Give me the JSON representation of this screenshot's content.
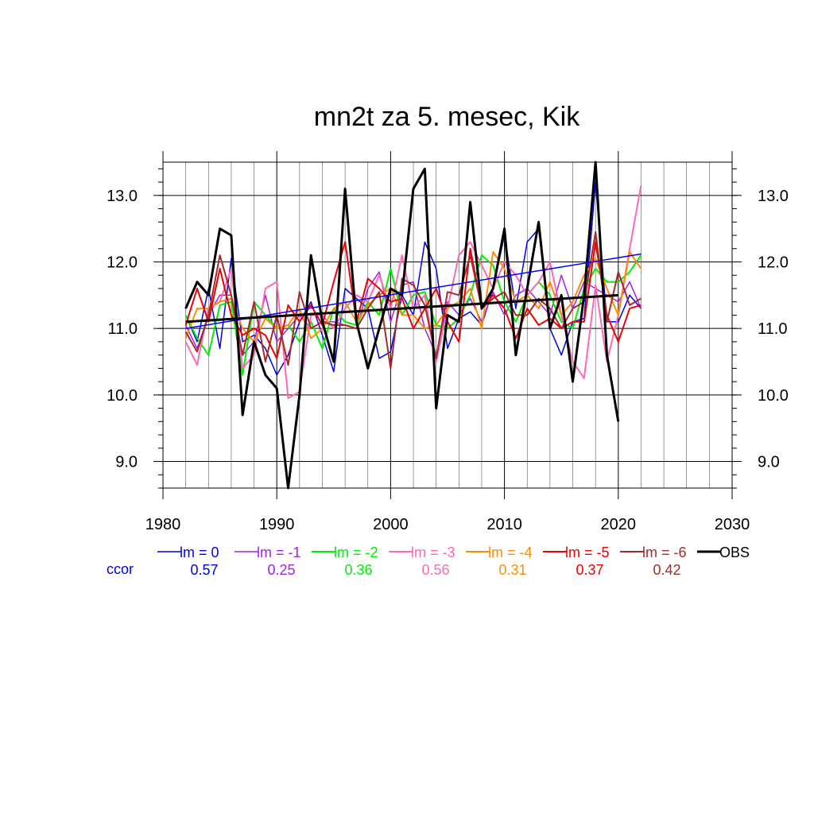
{
  "chart_data": {
    "type": "line",
    "title": "mn2t za 5. mesec, Kik",
    "xlim": [
      1980,
      2030
    ],
    "ylim": [
      8.6,
      13.5
    ],
    "x_ticks": [
      1980,
      1990,
      2000,
      2010,
      2020,
      2030
    ],
    "x_tick_labels": [
      "1980",
      "1990",
      "2000",
      "2010",
      "2020",
      "2030"
    ],
    "y_ticks": [
      9.0,
      10.0,
      11.0,
      12.0,
      13.0
    ],
    "y_tick_labels": [
      "9.0",
      "10.0",
      "11.0",
      "12.0",
      "13.0"
    ],
    "grid": true,
    "legend_position": "bottom",
    "ccor_label": "ccor",
    "x": [
      1982,
      1983,
      1984,
      1985,
      1986,
      1987,
      1988,
      1989,
      1990,
      1991,
      1992,
      1993,
      1994,
      1995,
      1996,
      1997,
      1998,
      1999,
      2000,
      2001,
      2002,
      2003,
      2004,
      2005,
      2006,
      2007,
      2008,
      2009,
      2010,
      2011,
      2012,
      2013,
      2014,
      2015,
      2016,
      2017,
      2018,
      2019,
      2020,
      2021,
      2022
    ],
    "series": [
      {
        "name": "lm = 0",
        "color": "#0000ee",
        "ccor": "0.57",
        "width": 1.5,
        "values": [
          11.2,
          10.8,
          11.6,
          10.7,
          12.05,
          10.8,
          10.9,
          10.7,
          10.3,
          10.6,
          11.1,
          11.4,
          10.9,
          10.35,
          11.6,
          11.45,
          11.3,
          10.55,
          10.65,
          11.5,
          11.2,
          12.3,
          11.9,
          10.7,
          11.15,
          11.25,
          11.05,
          11.6,
          12.4,
          11.3,
          12.3,
          12.5,
          11.0,
          10.6,
          11.1,
          11.15,
          13.2,
          11.1,
          11.1,
          11.5,
          11.3
        ]
      },
      {
        "name": "lm = -1",
        "color": "#a020f0",
        "ccor": "0.25",
        "width": 1.5,
        "values": [
          11.05,
          10.7,
          11.2,
          11.5,
          11.5,
          10.6,
          10.8,
          11.5,
          10.8,
          11.0,
          11.2,
          11.0,
          11.1,
          11.1,
          11.05,
          11.0,
          11.6,
          11.85,
          11.1,
          11.65,
          11.7,
          11.0,
          10.6,
          11.4,
          11.2,
          11.45,
          11.1,
          11.55,
          11.2,
          11.5,
          11.6,
          11.4,
          11.2,
          11.8,
          11.3,
          11.7,
          11.6,
          11.5,
          11.4,
          11.7,
          11.3
        ]
      },
      {
        "name": "lm = -2",
        "color": "#00ee00",
        "ccor": "0.36",
        "width": 2,
        "values": [
          11.2,
          10.85,
          10.6,
          11.35,
          11.4,
          10.3,
          11.4,
          11.2,
          11.0,
          11.05,
          10.8,
          11.1,
          10.7,
          11.3,
          11.1,
          11.05,
          11.4,
          11.2,
          11.9,
          11.2,
          11.5,
          11.55,
          11.05,
          11.0,
          11.15,
          11.5,
          12.1,
          11.95,
          11.4,
          11.1,
          11.5,
          11.7,
          11.5,
          11.1,
          11.0,
          11.6,
          11.9,
          11.7,
          11.7,
          11.85,
          12.1
        ]
      },
      {
        "name": "lm = -3",
        "color": "#ff69b4",
        "ccor": "0.56",
        "width": 2,
        "values": [
          10.8,
          10.45,
          11.3,
          11.4,
          11.9,
          10.4,
          10.6,
          11.6,
          11.7,
          9.95,
          10.05,
          11.2,
          11.2,
          11.0,
          11.3,
          11.5,
          11.4,
          11.8,
          11.3,
          12.1,
          11.3,
          11.5,
          10.5,
          11.3,
          12.1,
          12.3,
          11.95,
          11.6,
          12.0,
          11.8,
          11.5,
          11.7,
          12.0,
          11.2,
          10.5,
          10.25,
          11.65,
          10.5,
          11.2,
          12.2,
          13.15
        ]
      },
      {
        "name": "lm = -4",
        "color": "#ff8c00",
        "ccor": "0.31",
        "width": 2,
        "values": [
          10.85,
          11.3,
          11.3,
          11.4,
          11.45,
          11.0,
          10.8,
          11.15,
          11.0,
          11.05,
          11.3,
          10.85,
          11.0,
          11.3,
          11.4,
          11.1,
          11.35,
          11.5,
          11.6,
          11.2,
          11.2,
          11.0,
          11.05,
          11.3,
          11.4,
          11.6,
          11.0,
          12.15,
          11.9,
          11.4,
          11.5,
          11.3,
          11.7,
          11.2,
          11.4,
          11.8,
          12.05,
          11.6,
          11.2,
          12.15,
          11.9
        ]
      },
      {
        "name": "lm = -5",
        "color": "#ee0000",
        "ccor": "0.37",
        "width": 2,
        "values": [
          11.05,
          11.6,
          11.1,
          11.9,
          11.2,
          10.9,
          11.0,
          10.9,
          10.55,
          11.35,
          11.1,
          11.35,
          11.05,
          11.7,
          12.3,
          11.1,
          11.75,
          11.6,
          11.4,
          11.45,
          11.0,
          11.3,
          11.6,
          11.1,
          10.8,
          12.2,
          11.3,
          11.5,
          11.3,
          10.85,
          11.3,
          11.05,
          11.15,
          11.0,
          11.1,
          11.1,
          12.3,
          11.2,
          10.8,
          11.3,
          11.35
        ]
      },
      {
        "name": "lm = -6",
        "color": "#a52a2a",
        "ccor": "0.42",
        "width": 2,
        "values": [
          10.95,
          10.65,
          11.2,
          12.1,
          11.5,
          10.6,
          11.4,
          10.5,
          11.2,
          10.45,
          11.55,
          11.0,
          11.1,
          11.05,
          11.05,
          11.0,
          11.3,
          11.55,
          10.4,
          11.75,
          11.65,
          11.35,
          10.55,
          11.55,
          11.5,
          12.1,
          11.3,
          11.45,
          11.55,
          11.2,
          11.2,
          11.45,
          11.3,
          11.0,
          11.3,
          11.4,
          12.45,
          11.1,
          11.85,
          11.35,
          11.45
        ]
      },
      {
        "name": "OBS",
        "color": "#000000",
        "ccor": "",
        "width": 3,
        "values": [
          11.3,
          11.7,
          11.5,
          12.5,
          12.4,
          9.7,
          10.8,
          10.3,
          10.1,
          8.6,
          10.0,
          12.1,
          11.1,
          10.5,
          13.1,
          11.1,
          10.4,
          11.0,
          11.6,
          11.5,
          13.1,
          13.4,
          9.8,
          11.2,
          11.1,
          12.9,
          11.3,
          11.6,
          12.5,
          10.6,
          11.6,
          12.6,
          11.0,
          11.5,
          10.2,
          11.5,
          13.5,
          10.6,
          9.6,
          null,
          null
        ]
      }
    ],
    "trend_lines": [
      {
        "name": "lm = 0 trend",
        "color": "#0000ee",
        "x": [
          1982,
          2022
        ],
        "y": [
          11.0,
          12.12
        ],
        "width": 1.5
      },
      {
        "name": "OBS trend",
        "color": "#000000",
        "x": [
          1982,
          2020
        ],
        "y": [
          11.1,
          11.5
        ],
        "width": 3
      }
    ]
  }
}
